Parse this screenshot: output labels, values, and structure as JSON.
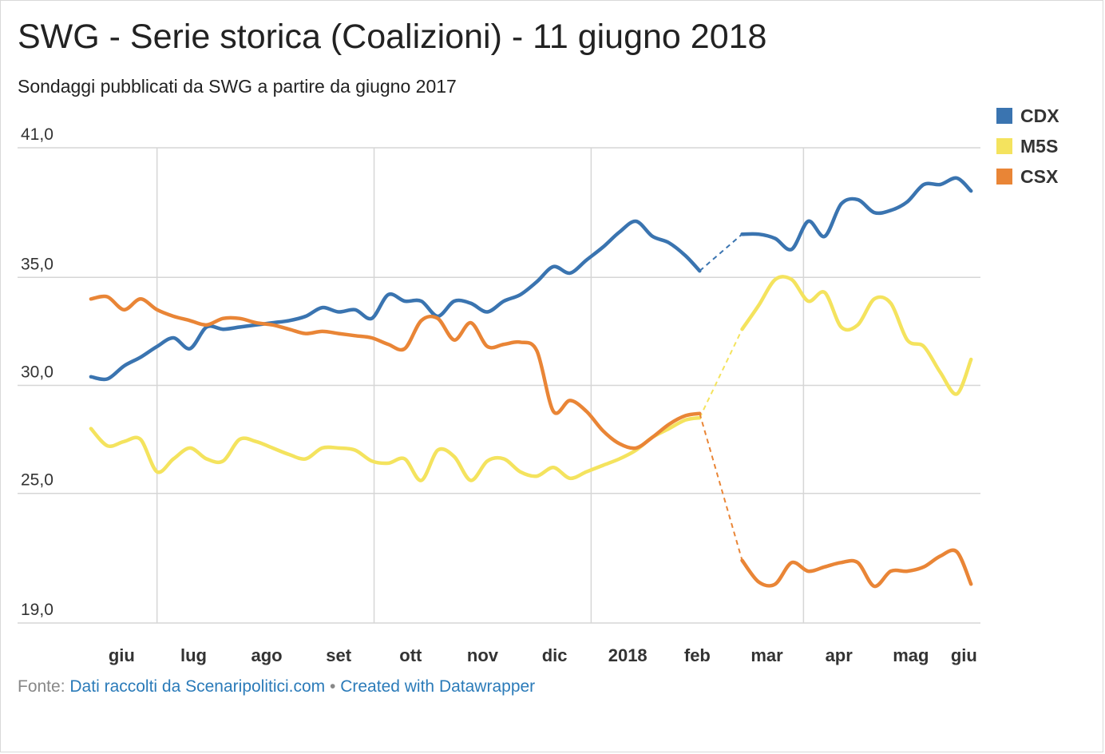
{
  "title": "SWG - Serie storica (Coalizioni) - 11 giugno 2018",
  "subtitle": "Sondaggi pubblicati da SWG a partire da giugno 2017",
  "footer": {
    "prefix": "Fonte:",
    "source": "Dati raccolti da Scenaripolitici.com",
    "separator": " • ",
    "credit": "Created with Datawrapper"
  },
  "chart_data": {
    "type": "line",
    "title": "SWG - Serie storica (Coalizioni) - 11 giugno 2018",
    "subtitle": "Sondaggi pubblicati da SWG a partire da giugno 2017",
    "xlabel": "",
    "ylabel": "",
    "ylim": [
      19.0,
      41.0
    ],
    "xlim": [
      "2017-06-01",
      "2018-06-15"
    ],
    "yticks": [
      19.0,
      25.0,
      30.0,
      35.0,
      41.0
    ],
    "ytick_labels": [
      "19,0",
      "25,0",
      "30,0",
      "35,0",
      "41,0"
    ],
    "xticks": [
      "2017-06-01",
      "2017-07-01",
      "2017-08-01",
      "2017-09-01",
      "2017-10-01",
      "2017-11-01",
      "2017-12-01",
      "2018-01-01",
      "2018-02-01",
      "2018-03-01",
      "2018-04-01",
      "2018-05-01",
      "2018-06-01"
    ],
    "xtick_labels": [
      "giu",
      "lug",
      "ago",
      "set",
      "ott",
      "nov",
      "dic",
      "2018",
      "feb",
      "mar",
      "apr",
      "mag",
      "giu"
    ],
    "grid": true,
    "legend": "top-right",
    "gap": {
      "from": "2018-02-16",
      "to": "2018-03-06"
    },
    "series": [
      {
        "name": "CDX",
        "color": "#3a74b0",
        "points": [
          [
            "2017-06-03",
            30.4
          ],
          [
            "2017-06-10",
            30.3
          ],
          [
            "2017-06-17",
            30.9
          ],
          [
            "2017-06-24",
            31.3
          ],
          [
            "2017-07-01",
            31.8
          ],
          [
            "2017-07-08",
            32.2
          ],
          [
            "2017-07-15",
            31.7
          ],
          [
            "2017-07-22",
            32.7
          ],
          [
            "2017-07-29",
            32.6
          ],
          [
            "2017-08-05",
            32.7
          ],
          [
            "2017-08-12",
            32.8
          ],
          [
            "2017-08-19",
            32.9
          ],
          [
            "2017-08-26",
            33.0
          ],
          [
            "2017-09-02",
            33.2
          ],
          [
            "2017-09-09",
            33.6
          ],
          [
            "2017-09-16",
            33.4
          ],
          [
            "2017-09-23",
            33.5
          ],
          [
            "2017-09-30",
            33.1
          ],
          [
            "2017-10-07",
            34.2
          ],
          [
            "2017-10-14",
            33.9
          ],
          [
            "2017-10-21",
            33.9
          ],
          [
            "2017-10-28",
            33.2
          ],
          [
            "2017-11-04",
            33.9
          ],
          [
            "2017-11-11",
            33.8
          ],
          [
            "2017-11-18",
            33.4
          ],
          [
            "2017-11-25",
            33.9
          ],
          [
            "2017-12-02",
            34.2
          ],
          [
            "2017-12-09",
            34.8
          ],
          [
            "2017-12-16",
            35.5
          ],
          [
            "2017-12-23",
            35.2
          ],
          [
            "2017-12-30",
            35.8
          ],
          [
            "2018-01-06",
            36.4
          ],
          [
            "2018-01-13",
            37.1
          ],
          [
            "2018-01-20",
            37.6
          ],
          [
            "2018-01-27",
            36.9
          ],
          [
            "2018-02-03",
            36.6
          ],
          [
            "2018-02-10",
            36.0
          ],
          [
            "2018-02-16",
            35.3
          ],
          [
            "2018-03-06",
            37.0
          ],
          [
            "2018-03-13",
            37.0
          ],
          [
            "2018-03-20",
            36.8
          ],
          [
            "2018-03-27",
            36.3
          ],
          [
            "2018-04-03",
            37.6
          ],
          [
            "2018-04-10",
            36.9
          ],
          [
            "2018-04-17",
            38.4
          ],
          [
            "2018-04-24",
            38.6
          ],
          [
            "2018-05-01",
            38.0
          ],
          [
            "2018-05-08",
            38.1
          ],
          [
            "2018-05-15",
            38.5
          ],
          [
            "2018-05-22",
            39.3
          ],
          [
            "2018-05-29",
            39.3
          ],
          [
            "2018-06-05",
            39.6
          ],
          [
            "2018-06-11",
            39.0
          ]
        ]
      },
      {
        "name": "M5S",
        "color": "#f4e35e",
        "points": [
          [
            "2017-06-03",
            28.0
          ],
          [
            "2017-06-10",
            27.2
          ],
          [
            "2017-06-17",
            27.4
          ],
          [
            "2017-06-24",
            27.5
          ],
          [
            "2017-07-01",
            26.0
          ],
          [
            "2017-07-08",
            26.6
          ],
          [
            "2017-07-15",
            27.1
          ],
          [
            "2017-07-22",
            26.6
          ],
          [
            "2017-07-29",
            26.5
          ],
          [
            "2017-08-05",
            27.5
          ],
          [
            "2017-08-12",
            27.4
          ],
          [
            "2017-08-19",
            27.1
          ],
          [
            "2017-08-26",
            26.8
          ],
          [
            "2017-09-02",
            26.6
          ],
          [
            "2017-09-09",
            27.1
          ],
          [
            "2017-09-16",
            27.1
          ],
          [
            "2017-09-23",
            27.0
          ],
          [
            "2017-09-30",
            26.5
          ],
          [
            "2017-10-07",
            26.4
          ],
          [
            "2017-10-14",
            26.6
          ],
          [
            "2017-10-21",
            25.6
          ],
          [
            "2017-10-28",
            27.0
          ],
          [
            "2017-11-04",
            26.7
          ],
          [
            "2017-11-11",
            25.6
          ],
          [
            "2017-11-18",
            26.5
          ],
          [
            "2017-11-25",
            26.6
          ],
          [
            "2017-12-02",
            26.0
          ],
          [
            "2017-12-09",
            25.8
          ],
          [
            "2017-12-16",
            26.2
          ],
          [
            "2017-12-23",
            25.7
          ],
          [
            "2017-12-30",
            26.0
          ],
          [
            "2018-01-06",
            26.3
          ],
          [
            "2018-01-13",
            26.6
          ],
          [
            "2018-01-20",
            27.0
          ],
          [
            "2018-01-27",
            27.6
          ],
          [
            "2018-02-03",
            28.0
          ],
          [
            "2018-02-10",
            28.4
          ],
          [
            "2018-02-16",
            28.5
          ],
          [
            "2018-03-06",
            32.6
          ],
          [
            "2018-03-13",
            33.7
          ],
          [
            "2018-03-20",
            34.9
          ],
          [
            "2018-03-27",
            34.9
          ],
          [
            "2018-04-03",
            33.9
          ],
          [
            "2018-04-10",
            34.3
          ],
          [
            "2018-04-17",
            32.7
          ],
          [
            "2018-04-24",
            32.8
          ],
          [
            "2018-05-01",
            34.0
          ],
          [
            "2018-05-08",
            33.8
          ],
          [
            "2018-05-15",
            32.1
          ],
          [
            "2018-05-22",
            31.8
          ],
          [
            "2018-05-29",
            30.6
          ],
          [
            "2018-06-05",
            29.6
          ],
          [
            "2018-06-11",
            31.2
          ]
        ]
      },
      {
        "name": "CSX",
        "color": "#e98536",
        "points": [
          [
            "2017-06-03",
            34.0
          ],
          [
            "2017-06-10",
            34.1
          ],
          [
            "2017-06-17",
            33.5
          ],
          [
            "2017-06-24",
            34.0
          ],
          [
            "2017-07-01",
            33.5
          ],
          [
            "2017-07-08",
            33.2
          ],
          [
            "2017-07-15",
            33.0
          ],
          [
            "2017-07-22",
            32.8
          ],
          [
            "2017-07-29",
            33.1
          ],
          [
            "2017-08-05",
            33.1
          ],
          [
            "2017-08-12",
            32.9
          ],
          [
            "2017-08-19",
            32.8
          ],
          [
            "2017-08-26",
            32.6
          ],
          [
            "2017-09-02",
            32.4
          ],
          [
            "2017-09-09",
            32.5
          ],
          [
            "2017-09-16",
            32.4
          ],
          [
            "2017-09-23",
            32.3
          ],
          [
            "2017-09-30",
            32.2
          ],
          [
            "2017-10-07",
            31.9
          ],
          [
            "2017-10-14",
            31.7
          ],
          [
            "2017-10-21",
            33.0
          ],
          [
            "2017-10-28",
            33.1
          ],
          [
            "2017-11-04",
            32.1
          ],
          [
            "2017-11-11",
            32.9
          ],
          [
            "2017-11-18",
            31.8
          ],
          [
            "2017-11-25",
            31.9
          ],
          [
            "2017-12-02",
            32.0
          ],
          [
            "2017-12-09",
            31.6
          ],
          [
            "2017-12-16",
            28.8
          ],
          [
            "2017-12-23",
            29.3
          ],
          [
            "2017-12-30",
            28.8
          ],
          [
            "2018-01-06",
            27.9
          ],
          [
            "2018-01-13",
            27.3
          ],
          [
            "2018-01-20",
            27.1
          ],
          [
            "2018-01-27",
            27.6
          ],
          [
            "2018-02-03",
            28.2
          ],
          [
            "2018-02-10",
            28.6
          ],
          [
            "2018-02-16",
            28.7
          ],
          [
            "2018-03-06",
            21.9
          ],
          [
            "2018-03-13",
            20.9
          ],
          [
            "2018-03-20",
            20.8
          ],
          [
            "2018-03-27",
            21.8
          ],
          [
            "2018-04-03",
            21.4
          ],
          [
            "2018-04-10",
            21.6
          ],
          [
            "2018-04-17",
            21.8
          ],
          [
            "2018-04-24",
            21.8
          ],
          [
            "2018-05-01",
            20.7
          ],
          [
            "2018-05-08",
            21.4
          ],
          [
            "2018-05-15",
            21.4
          ],
          [
            "2018-05-22",
            21.6
          ],
          [
            "2018-05-29",
            22.1
          ],
          [
            "2018-06-05",
            22.3
          ],
          [
            "2018-06-11",
            20.8
          ]
        ]
      }
    ]
  }
}
